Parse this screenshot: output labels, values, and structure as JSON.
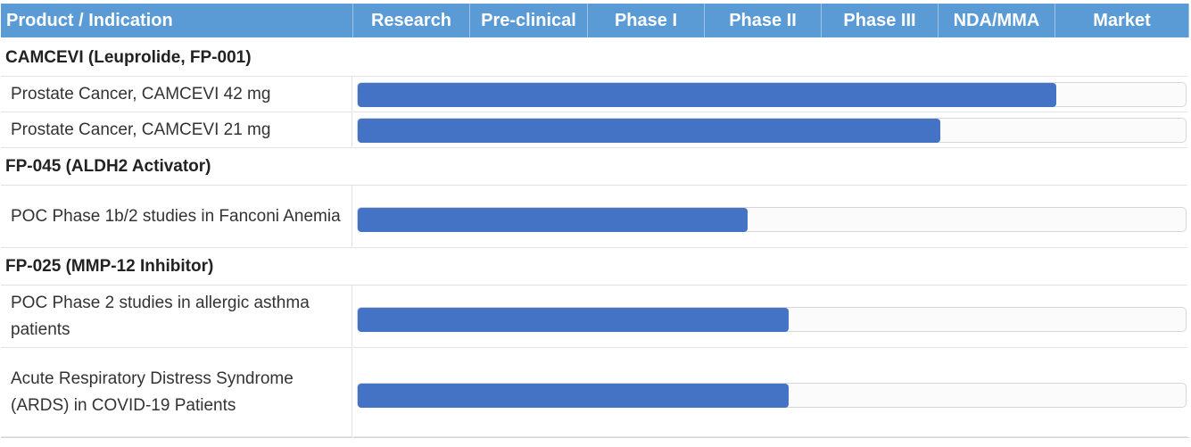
{
  "chart_data": {
    "type": "bar",
    "orientation": "horizontal",
    "header": {
      "label_column": "Product / Indication",
      "stages": [
        "Research",
        "Pre-clinical",
        "Phase I",
        "Phase II",
        "Phase III",
        "NDA/MMA",
        "Market"
      ]
    },
    "groups": [
      {
        "name": "CAMCEVI (Leuprolide, FP-001)",
        "rows": [
          {
            "indication": "Prostate Cancer, CAMCEVI 42 mg",
            "progress_stages": 6.0
          },
          {
            "indication": "Prostate Cancer, CAMCEVI 21 mg",
            "progress_stages": 5.0
          }
        ]
      },
      {
        "name": "FP-045 (ALDH2 Activator)",
        "rows": [
          {
            "indication": "POC Phase 1b/2 studies in Fanconi Anemia",
            "progress_stages": 3.35
          }
        ]
      },
      {
        "name": "FP-025 (MMP-12 Inhibitor)",
        "rows": [
          {
            "indication": "POC Phase 2 studies in allergic asthma patients",
            "progress_stages": 3.7
          },
          {
            "indication": "Acute Respiratory Distress Syndrome (ARDS) in COVID-19 Patients",
            "progress_stages": 3.7
          }
        ]
      }
    ],
    "xlim": [
      0,
      7
    ],
    "grid": false,
    "colors": {
      "header_bg": "#5b9bd5",
      "bar": "#4472c4"
    }
  }
}
